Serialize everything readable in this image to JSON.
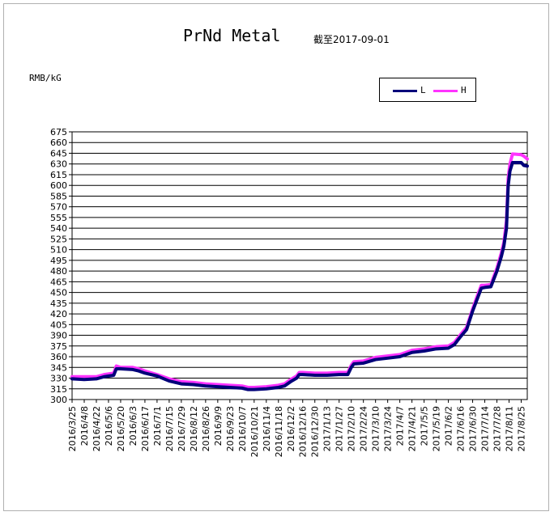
{
  "chart_data": {
    "type": "line",
    "title": "PrNd Metal",
    "subtitle": "截至2017-09-01",
    "ylabel": "RMB/kG",
    "ylim": [
      300,
      675
    ],
    "ystep": 15,
    "grid": true,
    "legend_position": "top-right",
    "x_ticks": [
      "2016/3/25",
      "2016/4/8",
      "2016/4/22",
      "2016/5/6",
      "2016/5/20",
      "2016/6/3",
      "2016/6/17",
      "2016/7/1",
      "2016/7/15",
      "2016/7/29",
      "2016/8/12",
      "2016/8/26",
      "2016/9/9",
      "2016/9/23",
      "2016/10/7",
      "2016/10/21",
      "2016/11/4",
      "2016/11/18",
      "2016/12/2",
      "2016/12/16",
      "2016/12/30",
      "2017/1/13",
      "2017/1/27",
      "2017/2/10",
      "2017/2/24",
      "2017/3/10",
      "2017/3/24",
      "2017/4/7",
      "2017/4/21",
      "2017/5/5",
      "2017/5/19",
      "2017/6/2",
      "2017/6/16",
      "2017/6/30",
      "2017/7/14",
      "2017/7/28",
      "2017/8/11",
      "2017/8/25"
    ],
    "x_start": "2016/3/25",
    "x_end": "2017/9/1",
    "series": [
      {
        "name": "L",
        "color": "#00007a",
        "points": [
          [
            "2016/3/25",
            329
          ],
          [
            "2016/4/8",
            328
          ],
          [
            "2016/4/22",
            329
          ],
          [
            "2016/5/1",
            332
          ],
          [
            "2016/5/12",
            334
          ],
          [
            "2016/5/15",
            343
          ],
          [
            "2016/5/20",
            343
          ],
          [
            "2016/6/3",
            342
          ],
          [
            "2016/6/10",
            340
          ],
          [
            "2016/6/17",
            337
          ],
          [
            "2016/7/1",
            333
          ],
          [
            "2016/7/15",
            326
          ],
          [
            "2016/7/29",
            322
          ],
          [
            "2016/8/12",
            321
          ],
          [
            "2016/8/26",
            319
          ],
          [
            "2016/9/9",
            318
          ],
          [
            "2016/9/23",
            317
          ],
          [
            "2016/10/7",
            316
          ],
          [
            "2016/10/14",
            314
          ],
          [
            "2016/10/21",
            314
          ],
          [
            "2016/11/4",
            315
          ],
          [
            "2016/11/18",
            317
          ],
          [
            "2016/11/25",
            319
          ],
          [
            "2016/12/2",
            325
          ],
          [
            "2016/12/9",
            330
          ],
          [
            "2016/12/12",
            335
          ],
          [
            "2016/12/16",
            335
          ],
          [
            "2016/12/30",
            334
          ],
          [
            "2017/1/13",
            334
          ],
          [
            "2017/1/27",
            335
          ],
          [
            "2017/2/6",
            335
          ],
          [
            "2017/2/10",
            345
          ],
          [
            "2017/2/13",
            350
          ],
          [
            "2017/2/24",
            351
          ],
          [
            "2017/3/10",
            356
          ],
          [
            "2017/3/24",
            358
          ],
          [
            "2017/4/7",
            360
          ],
          [
            "2017/4/21",
            366
          ],
          [
            "2017/5/5",
            368
          ],
          [
            "2017/5/19",
            371
          ],
          [
            "2017/6/2",
            372
          ],
          [
            "2017/6/9",
            377
          ],
          [
            "2017/6/16",
            388
          ],
          [
            "2017/6/23",
            398
          ],
          [
            "2017/6/30",
            424
          ],
          [
            "2017/7/5",
            440
          ],
          [
            "2017/7/10",
            456
          ],
          [
            "2017/7/14",
            457
          ],
          [
            "2017/7/21",
            458
          ],
          [
            "2017/7/28",
            480
          ],
          [
            "2017/8/2",
            500
          ],
          [
            "2017/8/5",
            515
          ],
          [
            "2017/8/8",
            540
          ],
          [
            "2017/8/10",
            600
          ],
          [
            "2017/8/12",
            620
          ],
          [
            "2017/8/15",
            632
          ],
          [
            "2017/8/25",
            632
          ],
          [
            "2017/8/28",
            628
          ],
          [
            "2017/9/1",
            627
          ]
        ]
      },
      {
        "name": "H",
        "color": "#ff33ff",
        "points": [
          [
            "2016/3/25",
            332
          ],
          [
            "2016/4/8",
            332
          ],
          [
            "2016/4/22",
            332
          ],
          [
            "2016/5/1",
            335
          ],
          [
            "2016/5/12",
            337
          ],
          [
            "2016/5/15",
            347
          ],
          [
            "2016/5/20",
            345
          ],
          [
            "2016/6/3",
            345
          ],
          [
            "2016/6/10",
            343
          ],
          [
            "2016/6/17",
            340
          ],
          [
            "2016/7/1",
            335
          ],
          [
            "2016/7/15",
            329
          ],
          [
            "2016/7/29",
            325
          ],
          [
            "2016/8/12",
            324
          ],
          [
            "2016/8/26",
            322
          ],
          [
            "2016/9/9",
            321
          ],
          [
            "2016/9/23",
            320
          ],
          [
            "2016/10/7",
            319
          ],
          [
            "2016/10/14",
            317
          ],
          [
            "2016/10/21",
            317
          ],
          [
            "2016/11/4",
            318
          ],
          [
            "2016/11/18",
            320
          ],
          [
            "2016/11/25",
            322
          ],
          [
            "2016/12/2",
            328
          ],
          [
            "2016/12/9",
            333
          ],
          [
            "2016/12/12",
            338
          ],
          [
            "2016/12/16",
            338
          ],
          [
            "2016/12/30",
            337
          ],
          [
            "2017/1/13",
            337
          ],
          [
            "2017/1/27",
            338
          ],
          [
            "2017/2/6",
            338
          ],
          [
            "2017/2/10",
            348
          ],
          [
            "2017/2/13",
            353
          ],
          [
            "2017/2/24",
            354
          ],
          [
            "2017/3/10",
            359
          ],
          [
            "2017/3/24",
            361
          ],
          [
            "2017/4/7",
            363
          ],
          [
            "2017/4/21",
            369
          ],
          [
            "2017/5/5",
            371
          ],
          [
            "2017/5/19",
            374
          ],
          [
            "2017/6/2",
            375
          ],
          [
            "2017/6/9",
            380
          ],
          [
            "2017/6/16",
            391
          ],
          [
            "2017/6/23",
            401
          ],
          [
            "2017/6/30",
            427
          ],
          [
            "2017/7/5",
            444
          ],
          [
            "2017/7/10",
            460
          ],
          [
            "2017/7/14",
            460
          ],
          [
            "2017/7/21",
            461
          ],
          [
            "2017/7/28",
            484
          ],
          [
            "2017/8/2",
            505
          ],
          [
            "2017/8/5",
            520
          ],
          [
            "2017/8/8",
            550
          ],
          [
            "2017/8/10",
            610
          ],
          [
            "2017/8/12",
            630
          ],
          [
            "2017/8/15",
            644
          ],
          [
            "2017/8/25",
            643
          ],
          [
            "2017/8/28",
            641
          ],
          [
            "2017/9/1",
            637
          ]
        ]
      }
    ]
  }
}
